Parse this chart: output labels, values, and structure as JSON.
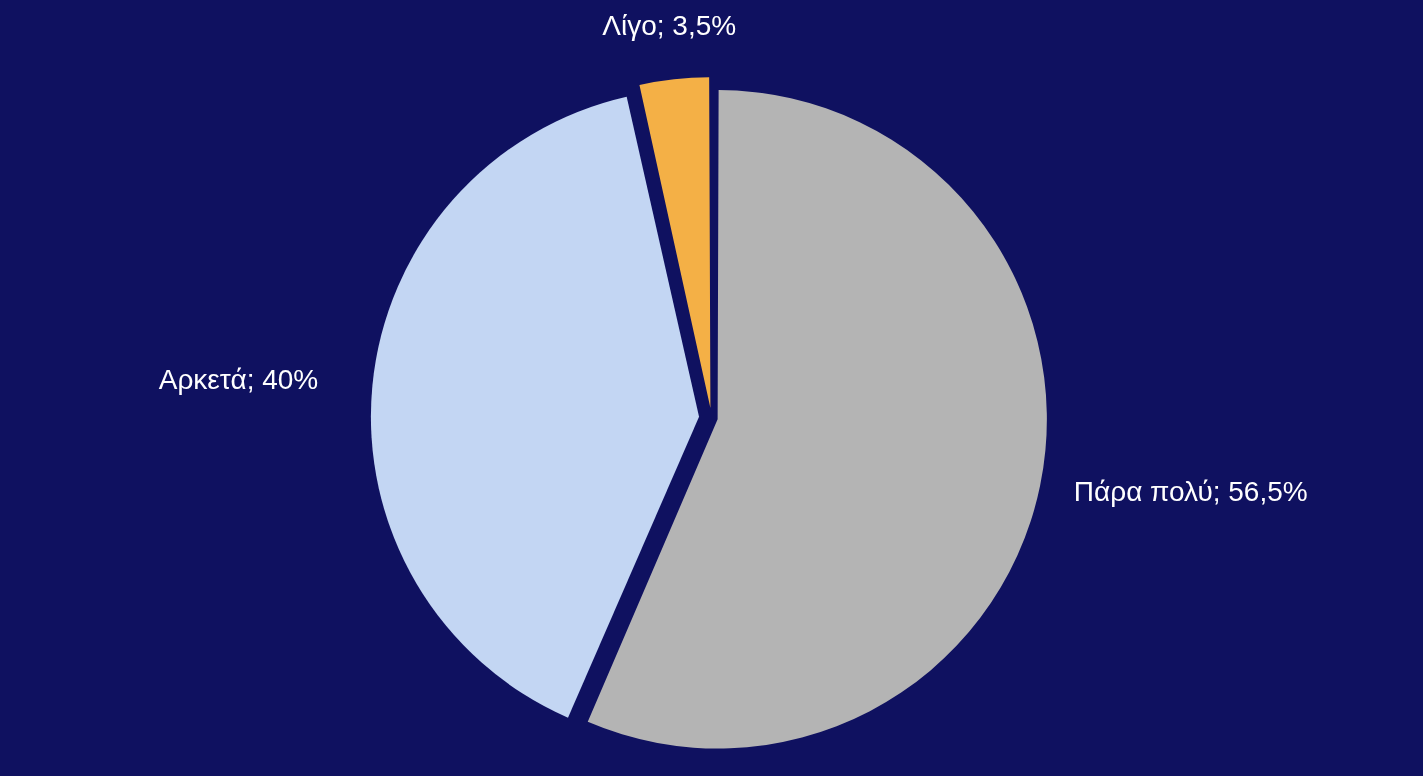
{
  "chart_data": {
    "type": "pie",
    "categories": [
      "Πάρα πολύ",
      "Αρκετά",
      "Λίγο"
    ],
    "values": [
      56.5,
      40,
      3.5
    ],
    "colors": [
      "#b4b4b4",
      "#c3d6f3",
      "#f4b046"
    ],
    "value_labels": [
      "56,5%",
      "40%",
      "3,5%"
    ],
    "legend": false
  }
}
